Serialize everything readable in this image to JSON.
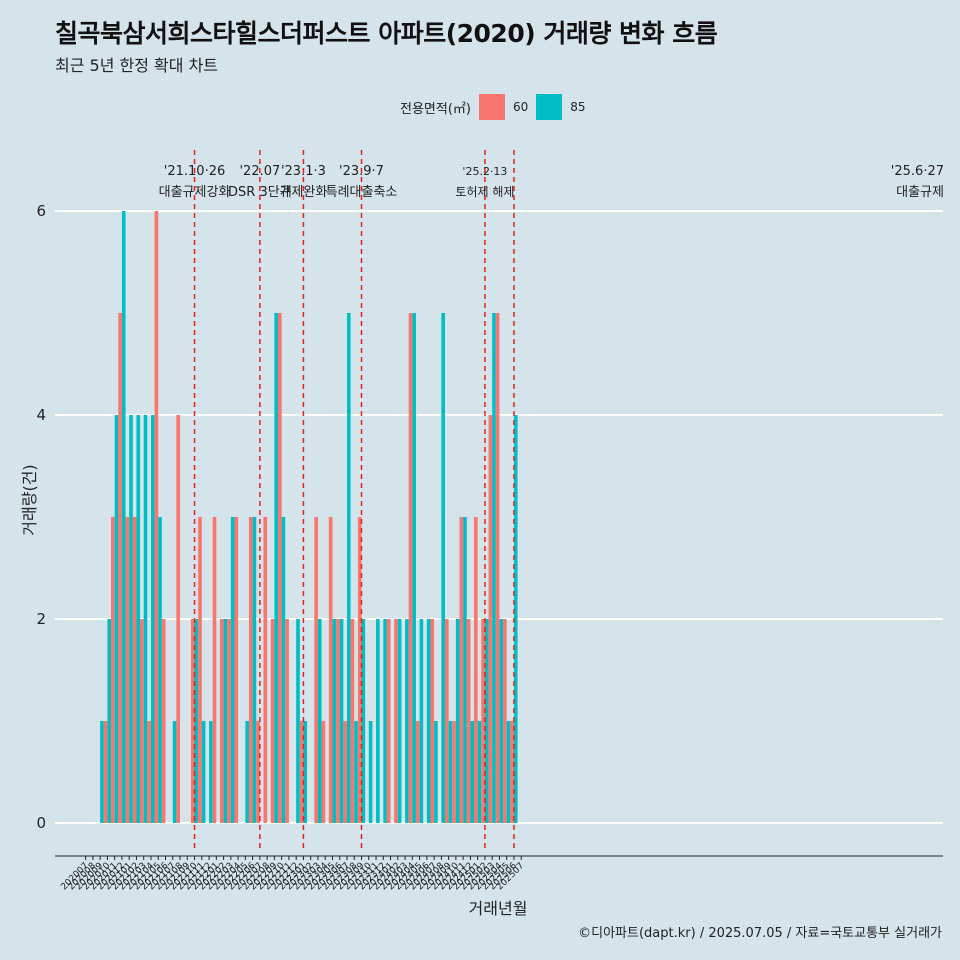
{
  "title": "칠곡북삼서희스타힐스더퍼스트 아파트(2020) 거래량 변화 흐름",
  "subtitle": "최근 5년 한정 확대 차트",
  "caption": "©디아파트(dapt.kr) / 2025.07.05 / 자료=국토교통부 실거래가",
  "legend": {
    "title": "전용면적(㎡)",
    "items": [
      {
        "label": "60",
        "color": "#f8766d"
      },
      {
        "label": "85",
        "color": "#00bfc4"
      }
    ]
  },
  "chart_data": {
    "type": "bar",
    "title": "칠곡북삼서희스타힐스더퍼스트 아파트(2020) 거래량 변화 흐름",
    "xlabel": "거래년월",
    "ylabel": "거래량(건)",
    "ylim": [
      0,
      6
    ],
    "yticks": [
      0,
      2,
      4,
      6
    ],
    "categories": [
      "202007",
      "202008",
      "202009",
      "202010",
      "202011",
      "202012",
      "202101",
      "202102",
      "202103",
      "202104",
      "202105",
      "202106",
      "202107",
      "202108",
      "202109",
      "202110",
      "202111",
      "202112",
      "202201",
      "202202",
      "202203",
      "202204",
      "202205",
      "202206",
      "202207",
      "202208",
      "202209",
      "202210",
      "202211",
      "202212",
      "202301",
      "202302",
      "202303",
      "202304",
      "202305",
      "202306",
      "202307",
      "202308",
      "202309",
      "202310",
      "202311",
      "202312",
      "202401",
      "202402",
      "202403",
      "202404",
      "202405",
      "202406",
      "202407",
      "202408",
      "202409",
      "202410",
      "202411",
      "202412",
      "202501",
      "202502",
      "202503",
      "202504",
      "202505",
      "202506",
      "202507"
    ],
    "series": [
      {
        "name": "60",
        "color": "#f8766d",
        "values": [
          0,
          0,
          0,
          1,
          3,
          5,
          3,
          3,
          2,
          1,
          6,
          2,
          0,
          4,
          0,
          2,
          3,
          0,
          3,
          2,
          2,
          3,
          0,
          3,
          1,
          3,
          2,
          5,
          2,
          0,
          1,
          0,
          3,
          1,
          3,
          2,
          1,
          2,
          3,
          0,
          0,
          0,
          2,
          2,
          0,
          5,
          1,
          0,
          2,
          0,
          2,
          1,
          3,
          2,
          3,
          2,
          4,
          5,
          2,
          1,
          0
        ]
      },
      {
        "name": "85",
        "color": "#00bfc4",
        "values": [
          0,
          0,
          1,
          2,
          4,
          6,
          4,
          4,
          4,
          4,
          3,
          0,
          1,
          0,
          0,
          2,
          1,
          1,
          0,
          2,
          3,
          0,
          1,
          3,
          0,
          0,
          5,
          3,
          0,
          2,
          1,
          0,
          2,
          0,
          2,
          2,
          5,
          1,
          2,
          1,
          2,
          2,
          0,
          2,
          2,
          5,
          2,
          2,
          1,
          5,
          1,
          2,
          3,
          1,
          1,
          2,
          5,
          2,
          1,
          4,
          0
        ]
      }
    ],
    "annotations": [
      {
        "x": "202110",
        "date": "'21.10·26",
        "label": "대출규제강화"
      },
      {
        "x": "202207",
        "date": "'22.07",
        "label": "DSR 3단계"
      },
      {
        "x": "202301",
        "date": "'23.1·3",
        "label": "규제완화"
      },
      {
        "x": "202309",
        "date": "'23.9·7",
        "label": "특례대출축소"
      },
      {
        "x": "202502",
        "date": "'25.2·13",
        "label": "토허제 해제"
      },
      {
        "x": "202506",
        "date": "'25.6·27",
        "label": "대출규제"
      }
    ]
  }
}
